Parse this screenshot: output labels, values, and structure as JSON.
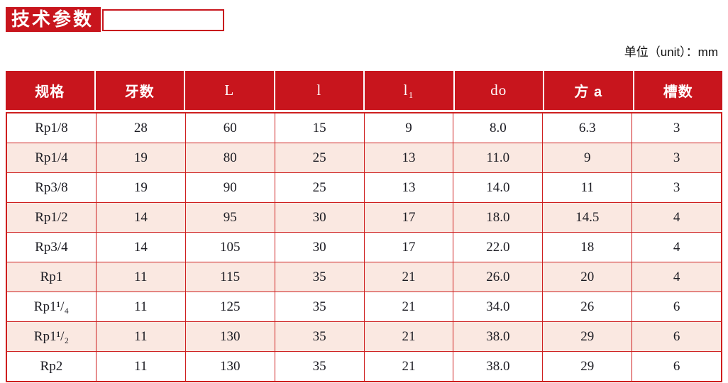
{
  "title": {
    "label": "技术参数"
  },
  "unit_note": "单位（unit）：mm",
  "colors": {
    "accent_red": "#c8151d",
    "grid_red": "#ce1f1f",
    "stripe_pink": "#fae8e1",
    "header_text": "#ffffff",
    "body_text": "#1b1b22"
  },
  "table": {
    "columns": [
      "规格",
      "牙数",
      "L",
      "l",
      "l₁",
      "do",
      "方 a",
      "槽数"
    ],
    "rows": [
      [
        "Rp1/8",
        "28",
        "60",
        "15",
        "9",
        "8.0",
        "6.3",
        "3"
      ],
      [
        "Rp1/4",
        "19",
        "80",
        "25",
        "13",
        "11.0",
        "9",
        "3"
      ],
      [
        "Rp3/8",
        "19",
        "90",
        "25",
        "13",
        "14.0",
        "11",
        "3"
      ],
      [
        "Rp1/2",
        "14",
        "95",
        "30",
        "17",
        "18.0",
        "14.5",
        "4"
      ],
      [
        "Rp3/4",
        "14",
        "105",
        "30",
        "17",
        "22.0",
        "18",
        "4"
      ],
      [
        "Rp1",
        "11",
        "115",
        "35",
        "21",
        "26.0",
        "20",
        "4"
      ],
      [
        "Rp1¹/₄",
        "11",
        "125",
        "35",
        "21",
        "34.0",
        "26",
        "6"
      ],
      [
        "Rp1¹/₂",
        "11",
        "130",
        "35",
        "21",
        "38.0",
        "29",
        "6"
      ],
      [
        "Rp2",
        "11",
        "130",
        "35",
        "21",
        "38.0",
        "29",
        "6"
      ]
    ]
  }
}
